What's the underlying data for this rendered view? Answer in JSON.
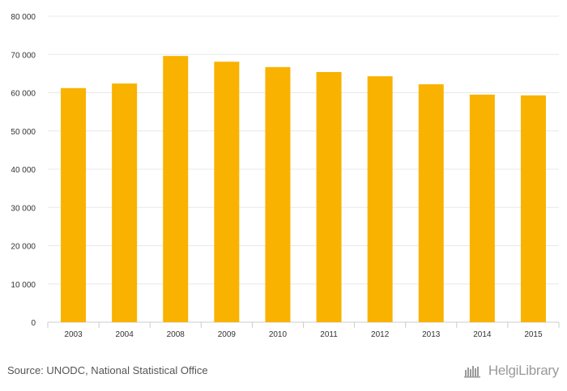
{
  "chart_data": {
    "type": "bar",
    "categories": [
      "2003",
      "2004",
      "2008",
      "2009",
      "2010",
      "2011",
      "2012",
      "2013",
      "2014",
      "2015"
    ],
    "values": [
      61200,
      62400,
      69600,
      68100,
      66700,
      65400,
      64300,
      62200,
      59500,
      59300
    ],
    "ylim": [
      0,
      80000
    ],
    "yticks": [
      0,
      10000,
      20000,
      30000,
      40000,
      50000,
      60000,
      70000,
      80000
    ],
    "ytick_labels": [
      "0",
      "10 000",
      "20 000",
      "30 000",
      "40 000",
      "50 000",
      "60 000",
      "70 000",
      "80 000"
    ],
    "grid": true,
    "bar_color": "#F9B200"
  },
  "footer": {
    "source": "Source: UNODC, National Statistical Office",
    "brand": "HelgiLibrary"
  },
  "colors": {
    "grid": "#e8e8e8",
    "axis": "#cccccc",
    "tick_text": "#333333"
  }
}
